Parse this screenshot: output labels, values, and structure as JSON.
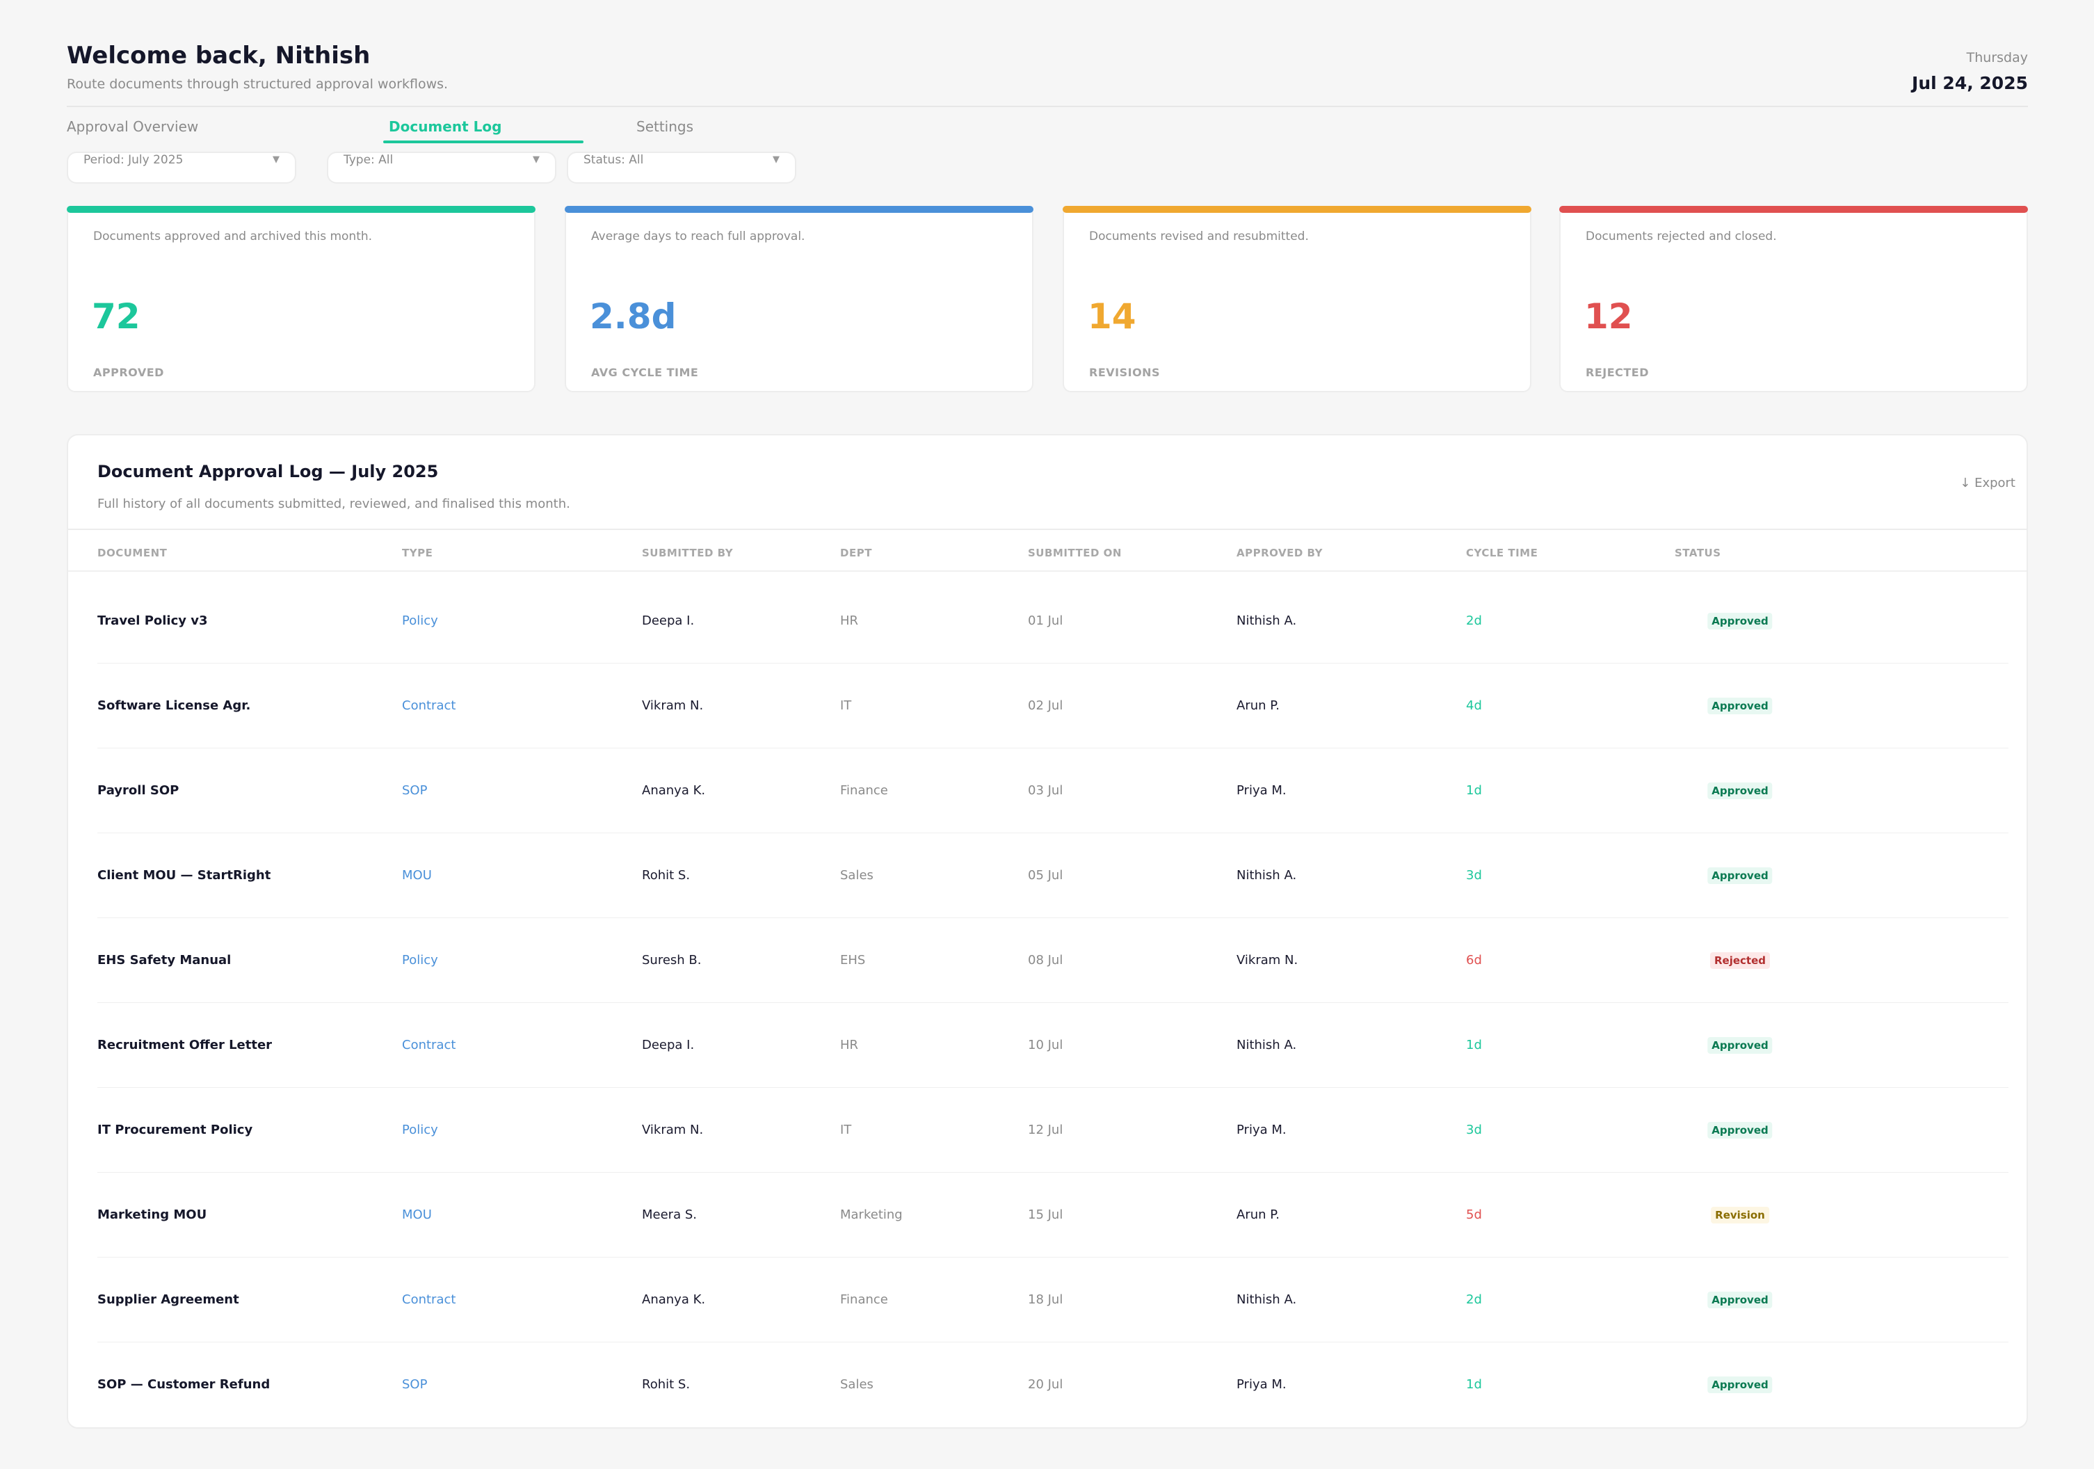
{
  "header": {
    "greeting": "Welcome back, Nithish",
    "subtitle": "Route documents through structured approval workflows.",
    "weekday": "Thursday",
    "date": "Jul 24, 2025"
  },
  "tabs": [
    {
      "label": "Approval Overview",
      "active": false
    },
    {
      "label": "Document Log",
      "active": true
    },
    {
      "label": "Settings",
      "active": false
    }
  ],
  "filters": [
    {
      "label": "Period: July 2025"
    },
    {
      "label": "Type: All"
    },
    {
      "label": "Status: All"
    }
  ],
  "kpis": [
    {
      "description": "Documents approved and archived this month.",
      "value": "72",
      "label": "APPROVED",
      "color": "#1cc79b"
    },
    {
      "description": "Average days to reach full approval.",
      "value": "2.8d",
      "label": "AVG CYCLE TIME",
      "color": "#4a90d9"
    },
    {
      "description": "Documents revised and resubmitted.",
      "value": "14",
      "label": "REVISIONS",
      "color": "#f0a830"
    },
    {
      "description": "Documents rejected and closed.",
      "value": "12",
      "label": "REJECTED",
      "color": "#e05050"
    }
  ],
  "log": {
    "title": "Document Approval Log — July 2025",
    "subtitle": "Full history of all documents submitted, reviewed, and finalised this month.",
    "export_label": "↓ Export",
    "columns": [
      "DOCUMENT",
      "TYPE",
      "SUBMITTED BY",
      "DEPT",
      "SUBMITTED ON",
      "APPROVED BY",
      "CYCLE TIME",
      "STATUS"
    ],
    "rows": [
      {
        "document": "Travel Policy v3",
        "type": "Policy",
        "submitted_by": "Deepa I.",
        "dept": "HR",
        "submitted_on": "01 Jul",
        "approved_by": "Nithish A.",
        "cycle_time": "2d",
        "status": "Approved"
      },
      {
        "document": "Software License Agr.",
        "type": "Contract",
        "submitted_by": "Vikram N.",
        "dept": "IT",
        "submitted_on": "02 Jul",
        "approved_by": "Arun P.",
        "cycle_time": "4d",
        "status": "Approved"
      },
      {
        "document": "Payroll SOP",
        "type": "SOP",
        "submitted_by": "Ananya K.",
        "dept": "Finance",
        "submitted_on": "03 Jul",
        "approved_by": "Priya M.",
        "cycle_time": "1d",
        "status": "Approved"
      },
      {
        "document": "Client MOU — StartRight",
        "type": "MOU",
        "submitted_by": "Rohit S.",
        "dept": "Sales",
        "submitted_on": "05 Jul",
        "approved_by": "Nithish A.",
        "cycle_time": "3d",
        "status": "Approved"
      },
      {
        "document": "EHS Safety Manual",
        "type": "Policy",
        "submitted_by": "Suresh B.",
        "dept": "EHS",
        "submitted_on": "08 Jul",
        "approved_by": "Vikram N.",
        "cycle_time": "6d",
        "status": "Rejected"
      },
      {
        "document": "Recruitment Offer Letter",
        "type": "Contract",
        "submitted_by": "Deepa I.",
        "dept": "HR",
        "submitted_on": "10 Jul",
        "approved_by": "Nithish A.",
        "cycle_time": "1d",
        "status": "Approved"
      },
      {
        "document": "IT Procurement Policy",
        "type": "Policy",
        "submitted_by": "Vikram N.",
        "dept": "IT",
        "submitted_on": "12 Jul",
        "approved_by": "Priya M.",
        "cycle_time": "3d",
        "status": "Approved"
      },
      {
        "document": "Marketing MOU",
        "type": "MOU",
        "submitted_by": "Meera S.",
        "dept": "Marketing",
        "submitted_on": "15 Jul",
        "approved_by": "Arun P.",
        "cycle_time": "5d",
        "status": "Revision"
      },
      {
        "document": "Supplier Agreement",
        "type": "Contract",
        "submitted_by": "Ananya K.",
        "dept": "Finance",
        "submitted_on": "18 Jul",
        "approved_by": "Nithish A.",
        "cycle_time": "2d",
        "status": "Approved"
      },
      {
        "document": "SOP — Customer Refund",
        "type": "SOP",
        "submitted_by": "Rohit S.",
        "dept": "Sales",
        "submitted_on": "20 Jul",
        "approved_by": "Priya M.",
        "cycle_time": "1d",
        "status": "Approved"
      }
    ]
  }
}
